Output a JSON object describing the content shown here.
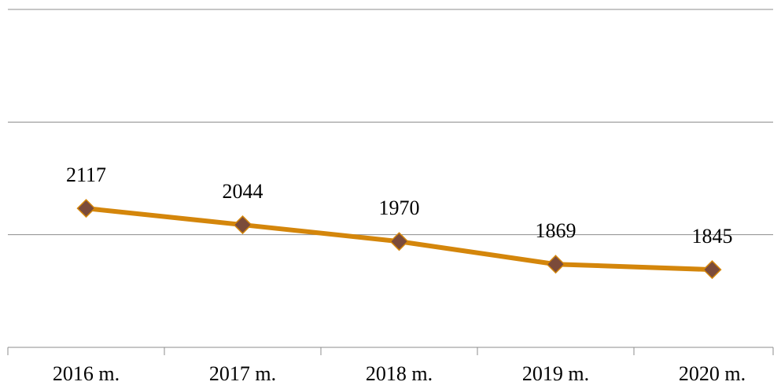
{
  "chart_data": {
    "type": "line",
    "categories": [
      "2016 m.",
      "2017 m.",
      "2018 m.",
      "2019 m.",
      "2020 m."
    ],
    "series": [
      {
        "color": "#d4860b",
        "marker_color": "#7b4b3a",
        "values": [
          2117,
          2044,
          1970,
          1869,
          1845
        ]
      }
    ],
    "ylim": [
      1500,
      3000
    ],
    "yticks": [
      1500,
      2000,
      2500,
      3000
    ],
    "grid": true
  }
}
